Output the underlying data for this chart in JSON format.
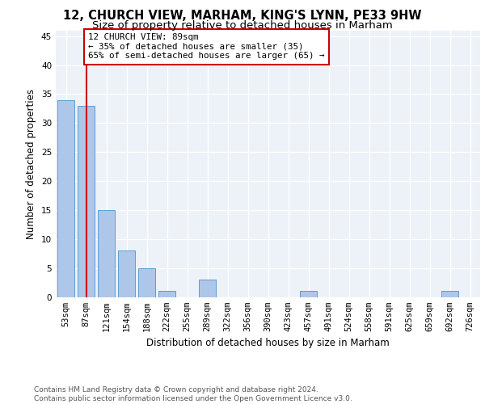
{
  "title": "12, CHURCH VIEW, MARHAM, KING'S LYNN, PE33 9HW",
  "subtitle": "Size of property relative to detached houses in Marham",
  "xlabel": "Distribution of detached houses by size in Marham",
  "ylabel": "Number of detached properties",
  "bar_labels": [
    "53sqm",
    "87sqm",
    "121sqm",
    "154sqm",
    "188sqm",
    "222sqm",
    "255sqm",
    "289sqm",
    "322sqm",
    "356sqm",
    "390sqm",
    "423sqm",
    "457sqm",
    "491sqm",
    "524sqm",
    "558sqm",
    "591sqm",
    "625sqm",
    "659sqm",
    "692sqm",
    "726sqm"
  ],
  "bar_values": [
    34,
    33,
    15,
    8,
    5,
    1,
    0,
    3,
    0,
    0,
    0,
    0,
    1,
    0,
    0,
    0,
    0,
    0,
    0,
    1,
    0
  ],
  "bar_color": "#aec6e8",
  "bar_edge_color": "#5a9fd4",
  "background_color": "#edf1f8",
  "grid_color": "#ffffff",
  "vline_x": 1,
  "vline_color": "#cc0000",
  "annotation_text": "12 CHURCH VIEW: 89sqm\n← 35% of detached houses are smaller (35)\n65% of semi-detached houses are larger (65) →",
  "annotation_box_color": "#ffffff",
  "annotation_box_edge": "#cc0000",
  "ylim": [
    0,
    46
  ],
  "yticks": [
    0,
    5,
    10,
    15,
    20,
    25,
    30,
    35,
    40,
    45
  ],
  "footer_text": "Contains HM Land Registry data © Crown copyright and database right 2024.\nContains public sector information licensed under the Open Government Licence v3.0.",
  "title_fontsize": 10.5,
  "subtitle_fontsize": 9.5,
  "tick_fontsize": 7.5,
  "ylabel_fontsize": 8.5,
  "xlabel_fontsize": 8.5,
  "footer_fontsize": 6.5
}
